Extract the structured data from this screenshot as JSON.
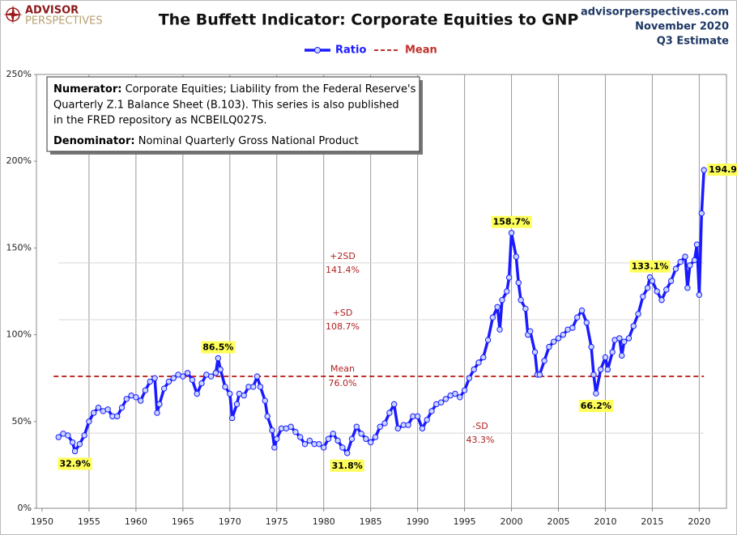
{
  "brand": [
    "ADVISOR",
    "PERSPECTIVES"
  ],
  "chart_data": {
    "type": "line",
    "title": "The Buffett Indicator: Corporate Equities to GNP",
    "source": "advisorperspectives.com",
    "date": "November 2020",
    "note": "Q3 Estimate",
    "textbox": {
      "numerator_label": "Numerator:",
      "numerator_lines": [
        " Corporate Equities; Liability from the Federal Reserve's",
        "Quarterly Z.1 Balance Sheet (B.103). This series is also published",
        "in the FRED repository  as NCBEILQ027S."
      ],
      "denominator_label": "Denominator:",
      "denominator_text": " Nominal Quarterly Gross National Product"
    },
    "xlim": [
      1949.4,
      2022.9
    ],
    "xticks": [
      1950,
      1955,
      1960,
      1965,
      1970,
      1975,
      1980,
      1985,
      1990,
      1995,
      2000,
      2005,
      2010,
      2015,
      2020
    ],
    "ylim": [
      0,
      250
    ],
    "yticks": [
      {
        "value": 0,
        "label": "0%"
      },
      {
        "value": 50,
        "label": "50%"
      },
      {
        "value": 100,
        "label": "100%"
      },
      {
        "value": 150,
        "label": "150%"
      },
      {
        "value": 200,
        "label": "200%"
      },
      {
        "value": 250,
        "label": "250%"
      }
    ],
    "grid": "x",
    "series": [
      {
        "name": "Ratio",
        "color": "#1a1aff",
        "x": [
          1951.75,
          1952.25,
          1952.75,
          1953.25,
          1953.5,
          1954,
          1954.5,
          1955,
          1955.5,
          1956,
          1956.5,
          1957,
          1957.5,
          1958,
          1958.5,
          1959,
          1959.5,
          1960,
          1960.5,
          1961,
          1961.5,
          1962,
          1962.25,
          1962.5,
          1963,
          1963.5,
          1964,
          1964.5,
          1965,
          1965.5,
          1966,
          1966.5,
          1967,
          1967.5,
          1968,
          1968.5,
          1968.75,
          1969,
          1969.5,
          1970,
          1970.25,
          1970.75,
          1971,
          1971.5,
          1972,
          1972.5,
          1972.9,
          1973.25,
          1973.75,
          1974,
          1974.5,
          1974.75,
          1975,
          1975.5,
          1976,
          1976.5,
          1977,
          1977.5,
          1978,
          1978.5,
          1979,
          1979.5,
          1980,
          1980.5,
          1981,
          1981.5,
          1982,
          1982.5,
          1983,
          1983.5,
          1984,
          1984.5,
          1985,
          1985.5,
          1986,
          1986.5,
          1987,
          1987.5,
          1987.9,
          1988.5,
          1989,
          1989.5,
          1990,
          1990.5,
          1991,
          1991.5,
          1992,
          1992.5,
          1993,
          1993.5,
          1994,
          1994.5,
          1995,
          1995.5,
          1996,
          1996.5,
          1997,
          1997.5,
          1998,
          1998.5,
          1998.75,
          1999,
          1999.5,
          1999.75,
          2000,
          2000.5,
          2000.75,
          2001,
          2001.5,
          2001.75,
          2002,
          2002.5,
          2002.75,
          2003,
          2003.5,
          2004,
          2004.5,
          2005,
          2005.5,
          2006,
          2006.5,
          2007,
          2007.5,
          2008,
          2008.5,
          2008.75,
          2009,
          2009.5,
          2010,
          2010.25,
          2010.75,
          2011,
          2011.5,
          2011.75,
          2012,
          2012.5,
          2013,
          2013.5,
          2014,
          2014.5,
          2014.75,
          2015,
          2015.5,
          2016,
          2016.5,
          2017,
          2017.5,
          2018,
          2018.5,
          2018.75,
          2019,
          2019.5,
          2019.75,
          2020,
          2020.25,
          2020.5
        ],
        "values": [
          41,
          43,
          42,
          38,
          32.9,
          37,
          42,
          50,
          55,
          58,
          56,
          57,
          53,
          53,
          58,
          63,
          65,
          64,
          62,
          68,
          73,
          75,
          55,
          60,
          69,
          73,
          75,
          77,
          76,
          78,
          74,
          66,
          72,
          77,
          76,
          78,
          86.5,
          80,
          70,
          66,
          52,
          60,
          66,
          65,
          70,
          70,
          76,
          70,
          62,
          53,
          45,
          35,
          40,
          46,
          46,
          47,
          44,
          41,
          37,
          39,
          37,
          37,
          35,
          40,
          43,
          39,
          35,
          31.8,
          40,
          47,
          43,
          40,
          38,
          41,
          47,
          49,
          55,
          60,
          46,
          48,
          48,
          53,
          53,
          46,
          51,
          56,
          60,
          61,
          63,
          65,
          66,
          64,
          68,
          75,
          80,
          84,
          87,
          97,
          110,
          116,
          103,
          120,
          125,
          133,
          158.7,
          145,
          130,
          120,
          115,
          100,
          102,
          90,
          77,
          77,
          85,
          93,
          96,
          98,
          100,
          103,
          104,
          110,
          114,
          107,
          93,
          77,
          66.2,
          80,
          87,
          80,
          90,
          97,
          98,
          88,
          96,
          98,
          105,
          112,
          122,
          127,
          133.1,
          131,
          125,
          120,
          126,
          131,
          138,
          142,
          145,
          127,
          140,
          143,
          152,
          123,
          170,
          194.9
        ],
        "value_labels": [
          null,
          null,
          null,
          null,
          "32.9%",
          null,
          null,
          null,
          null,
          null,
          null,
          null,
          null,
          null,
          null,
          null,
          null,
          null,
          null,
          null,
          null,
          null,
          null,
          null,
          null,
          null,
          null,
          null,
          null,
          null,
          null,
          null,
          null,
          null,
          null,
          null,
          "86.5%",
          null,
          null,
          null,
          null,
          null,
          null,
          null,
          null,
          null,
          null,
          null,
          null,
          null,
          null,
          null,
          null,
          null,
          null,
          null,
          null,
          null,
          null,
          null,
          null,
          null,
          null,
          null,
          null,
          null,
          null,
          "31.8%",
          null,
          null,
          null,
          null,
          null,
          null,
          null,
          null,
          null,
          null,
          null,
          null,
          null,
          null,
          null,
          null,
          null,
          null,
          null,
          null,
          null,
          null,
          null,
          null,
          null,
          null,
          null,
          null,
          null,
          null,
          null,
          null,
          null,
          null,
          null,
          null,
          "158.7%",
          null,
          null,
          null,
          null,
          null,
          null,
          null,
          null,
          null,
          null,
          null,
          null,
          null,
          null,
          null,
          null,
          null,
          null,
          null,
          null,
          null,
          "66.2%",
          null,
          null,
          null,
          null,
          null,
          null,
          null,
          null,
          null,
          null,
          null,
          null,
          null,
          "133.1%",
          null,
          null,
          null,
          null,
          null,
          null,
          null,
          null,
          null,
          null,
          null,
          null,
          null,
          null,
          "194.9%"
        ]
      }
    ],
    "mean": {
      "name": "Mean",
      "value": 76.0,
      "label": "76.0%",
      "color": "#c0302b"
    },
    "bands": [
      {
        "name": "+2SD",
        "value": 141.4,
        "label": "141.4%"
      },
      {
        "name": "+SD",
        "value": 108.7,
        "label": "108.7%"
      },
      {
        "name": "-SD",
        "value": 43.3,
        "label": "43.3%"
      }
    ]
  }
}
